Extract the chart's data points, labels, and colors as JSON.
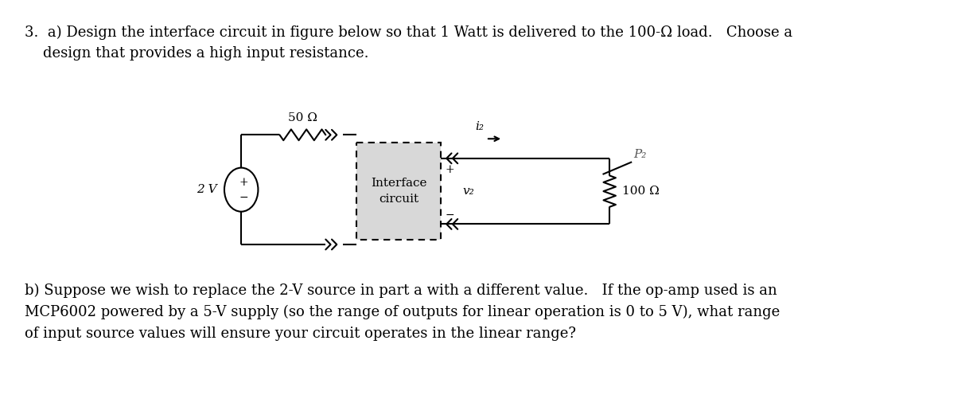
{
  "fig_width": 12.28,
  "fig_height": 4.96,
  "dpi": 100,
  "bg_color": "#ffffff",
  "text_color": "#000000",
  "line_color": "#000000",
  "title_part_a": "3.  a) Design the interface circuit in figure below so that 1 Watt is delivered to the 100-Ω load.   Choose a\n    design that provides a high input resistance.",
  "text_part_b": "b) Suppose we wish to replace the 2-V source in part a with a different value.   If the op-amp used is an\nMCP6002 powered by a 5-V supply (so the range of outputs for linear operation is 0 to 5 V), what range\nof input source values will ensure your circuit operates in the linear range?",
  "label_50ohm": "50 Ω",
  "label_2v": "2 V",
  "label_interface": "Interface\ncircuit",
  "label_v2": "v₂",
  "label_100ohm": "100 Ω",
  "label_i2": "i₂",
  "label_p2": "P₂",
  "font_size_main": 13,
  "font_size_circuit": 11
}
